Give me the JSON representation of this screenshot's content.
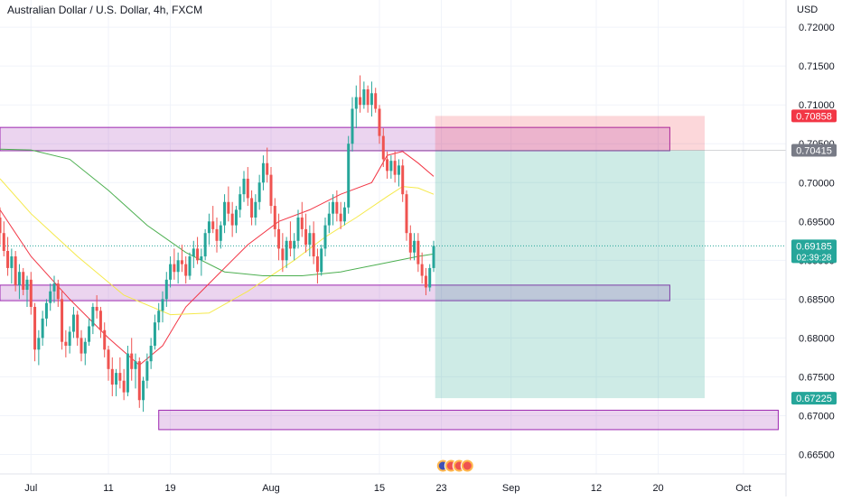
{
  "header": {
    "title": "Australian Dollar / U.S. Dollar, 4h, FXCM",
    "currency": "USD"
  },
  "chart_data": {
    "type": "candlestick",
    "y_axis": {
      "range": [
        0.6625,
        0.7235
      ],
      "ticks": [
        "0.72000",
        "0.71500",
        "0.71000",
        "0.70500",
        "0.70000",
        "0.69500",
        "0.69000",
        "0.68500",
        "0.68000",
        "0.67500",
        "0.67000",
        "0.66500"
      ],
      "tick_values": [
        0.72,
        0.715,
        0.71,
        0.705,
        0.7,
        0.695,
        0.69,
        0.685,
        0.68,
        0.675,
        0.67,
        0.665
      ]
    },
    "x_axis": {
      "ticks": [
        {
          "label": "Jul",
          "day": 0
        },
        {
          "label": "11",
          "day": 10
        },
        {
          "label": "19",
          "day": 18
        },
        {
          "label": "Aug",
          "day": 31
        },
        {
          "label": "15",
          "day": 45
        },
        {
          "label": "23",
          "day": 53
        },
        {
          "label": "Sep",
          "day": 62
        },
        {
          "label": "12",
          "day": 73
        },
        {
          "label": "20",
          "day": 81
        },
        {
          "label": "Oct",
          "day": 92
        }
      ],
      "visible_day_range": [
        -4,
        97.5
      ]
    },
    "price_labels": [
      {
        "value": "0.70858",
        "price": 0.70858,
        "color": "#f23645"
      },
      {
        "value": "0.70415",
        "price": 0.70415,
        "color": "#787b86"
      },
      {
        "value": "0.69185",
        "price": 0.69185,
        "countdown": "02:39:28",
        "color": "#26a69a"
      },
      {
        "value": "0.67225",
        "price": 0.67225,
        "color": "#26a69a"
      }
    ],
    "current_price": 0.69185,
    "zones": [
      {
        "from_day": -4,
        "to_day": 82.5,
        "price_low": 0.7041,
        "price_high": 0.7071
      },
      {
        "from_day": -4,
        "to_day": 82.5,
        "price_low": 0.6848,
        "price_high": 0.6868
      },
      {
        "from_day": 16.5,
        "to_day": 96.5,
        "price_low": 0.6682,
        "price_high": 0.6707
      }
    ],
    "position": {
      "from_day": 52.2,
      "to_day": 87,
      "entry": 0.70415,
      "stop": 0.70858,
      "target": 0.67225
    },
    "moving_averages": [
      {
        "color": "#f23645",
        "points": [
          [
            -4,
            0.6965
          ],
          [
            0,
            0.6905
          ],
          [
            5,
            0.685
          ],
          [
            10,
            0.68
          ],
          [
            14,
            0.6765
          ],
          [
            17,
            0.679
          ],
          [
            20,
            0.684
          ],
          [
            24,
            0.688
          ],
          [
            28,
            0.692
          ],
          [
            32,
            0.695
          ],
          [
            36,
            0.6965
          ],
          [
            40,
            0.6985
          ],
          [
            44,
            0.7
          ],
          [
            46,
            0.7035
          ],
          [
            48,
            0.704
          ],
          [
            50,
            0.7025
          ],
          [
            52,
            0.7008
          ]
        ]
      },
      {
        "color": "#f5e94a",
        "points": [
          [
            -4,
            0.7005
          ],
          [
            0,
            0.696
          ],
          [
            6,
            0.6905
          ],
          [
            12,
            0.6855
          ],
          [
            18,
            0.683
          ],
          [
            23,
            0.6832
          ],
          [
            28,
            0.686
          ],
          [
            34,
            0.69
          ],
          [
            38,
            0.693
          ],
          [
            42,
            0.6955
          ],
          [
            46,
            0.6982
          ],
          [
            48,
            0.6995
          ],
          [
            50,
            0.6993
          ],
          [
            52,
            0.6985
          ]
        ]
      },
      {
        "color": "#4caf50",
        "points": [
          [
            -4,
            0.7043
          ],
          [
            0,
            0.7042
          ],
          [
            5,
            0.703
          ],
          [
            10,
            0.699
          ],
          [
            15,
            0.6945
          ],
          [
            20,
            0.691
          ],
          [
            25,
            0.6885
          ],
          [
            30,
            0.688
          ],
          [
            35,
            0.688
          ],
          [
            40,
            0.6885
          ],
          [
            45,
            0.6895
          ],
          [
            50,
            0.6905
          ],
          [
            52,
            0.6908
          ]
        ]
      }
    ],
    "candles": [
      [
        -4,
        0.6955,
        0.6968,
        0.692,
        0.6935
      ],
      [
        -3.5,
        0.6935,
        0.695,
        0.6905,
        0.6912
      ],
      [
        -3,
        0.6912,
        0.693,
        0.688,
        0.689
      ],
      [
        -2.5,
        0.689,
        0.6915,
        0.687,
        0.6905
      ],
      [
        -2,
        0.6905,
        0.6912,
        0.686,
        0.6868
      ],
      [
        -1.5,
        0.6868,
        0.6895,
        0.685,
        0.6885
      ],
      [
        -1,
        0.6885,
        0.689,
        0.6855,
        0.6862
      ],
      [
        -0.5,
        0.6862,
        0.688,
        0.684,
        0.6875
      ],
      [
        0,
        0.6875,
        0.6885,
        0.683,
        0.684
      ],
      [
        0.5,
        0.684,
        0.6845,
        0.677,
        0.6785
      ],
      [
        1,
        0.6785,
        0.681,
        0.6765,
        0.68
      ],
      [
        1.5,
        0.68,
        0.6835,
        0.679,
        0.6825
      ],
      [
        2,
        0.6825,
        0.685,
        0.6815,
        0.6845
      ],
      [
        2.5,
        0.6845,
        0.687,
        0.6835,
        0.686
      ],
      [
        3,
        0.686,
        0.688,
        0.6845,
        0.687
      ],
      [
        3.5,
        0.687,
        0.6875,
        0.684,
        0.685
      ],
      [
        4,
        0.685,
        0.686,
        0.6785,
        0.6795
      ],
      [
        4.5,
        0.6795,
        0.681,
        0.6775,
        0.679
      ],
      [
        5,
        0.679,
        0.6815,
        0.678,
        0.6808
      ],
      [
        5.5,
        0.6808,
        0.684,
        0.68,
        0.683
      ],
      [
        6,
        0.683,
        0.6835,
        0.679,
        0.68
      ],
      [
        6.5,
        0.68,
        0.681,
        0.677,
        0.678
      ],
      [
        7,
        0.678,
        0.68,
        0.6765,
        0.6795
      ],
      [
        7.5,
        0.6795,
        0.6825,
        0.679,
        0.6815
      ],
      [
        8,
        0.6815,
        0.6845,
        0.6805,
        0.684
      ],
      [
        8.5,
        0.684,
        0.6855,
        0.6825,
        0.6835
      ],
      [
        9,
        0.6835,
        0.684,
        0.68,
        0.681
      ],
      [
        9.5,
        0.681,
        0.682,
        0.6775,
        0.6785
      ],
      [
        10,
        0.6785,
        0.679,
        0.6745,
        0.676
      ],
      [
        10.5,
        0.676,
        0.6775,
        0.6725,
        0.674
      ],
      [
        11,
        0.674,
        0.676,
        0.6725,
        0.6755
      ],
      [
        11.5,
        0.6755,
        0.6775,
        0.6735,
        0.6745
      ],
      [
        12,
        0.6745,
        0.676,
        0.672,
        0.673
      ],
      [
        12.5,
        0.673,
        0.679,
        0.6725,
        0.678
      ],
      [
        13,
        0.678,
        0.68,
        0.6745,
        0.676
      ],
      [
        13.5,
        0.676,
        0.678,
        0.6735,
        0.677
      ],
      [
        14,
        0.677,
        0.6775,
        0.671,
        0.672
      ],
      [
        14.5,
        0.672,
        0.675,
        0.6705,
        0.6745
      ],
      [
        15,
        0.6745,
        0.678,
        0.6735,
        0.677
      ],
      [
        15.5,
        0.677,
        0.68,
        0.676,
        0.679
      ],
      [
        16,
        0.679,
        0.683,
        0.6785,
        0.682
      ],
      [
        16.5,
        0.682,
        0.6845,
        0.681,
        0.6835
      ],
      [
        17,
        0.6835,
        0.686,
        0.682,
        0.685
      ],
      [
        17.5,
        0.685,
        0.6885,
        0.684,
        0.6875
      ],
      [
        18,
        0.6875,
        0.6905,
        0.6865,
        0.6895
      ],
      [
        18.5,
        0.6895,
        0.6915,
        0.6875,
        0.6885
      ],
      [
        19,
        0.6885,
        0.691,
        0.687,
        0.69
      ],
      [
        19.5,
        0.69,
        0.692,
        0.6885,
        0.6895
      ],
      [
        20,
        0.6895,
        0.6905,
        0.687,
        0.688
      ],
      [
        20.5,
        0.688,
        0.691,
        0.6875,
        0.6905
      ],
      [
        21,
        0.6905,
        0.6925,
        0.689,
        0.6915
      ],
      [
        21.5,
        0.6915,
        0.693,
        0.6895,
        0.69
      ],
      [
        22,
        0.69,
        0.6915,
        0.688,
        0.6905
      ],
      [
        22.5,
        0.6905,
        0.694,
        0.69,
        0.6935
      ],
      [
        23,
        0.6935,
        0.696,
        0.692,
        0.695
      ],
      [
        23.5,
        0.695,
        0.697,
        0.6935,
        0.694
      ],
      [
        24,
        0.694,
        0.6955,
        0.691,
        0.6925
      ],
      [
        24.5,
        0.6925,
        0.695,
        0.6915,
        0.6945
      ],
      [
        25,
        0.6945,
        0.6985,
        0.6935,
        0.6975
      ],
      [
        25.5,
        0.6975,
        0.6995,
        0.695,
        0.696
      ],
      [
        26,
        0.696,
        0.6975,
        0.693,
        0.6945
      ],
      [
        26.5,
        0.6945,
        0.697,
        0.6935,
        0.6965
      ],
      [
        27,
        0.6965,
        0.6995,
        0.6955,
        0.6985
      ],
      [
        27.5,
        0.6985,
        0.7015,
        0.6975,
        0.7005
      ],
      [
        28,
        0.7005,
        0.702,
        0.697,
        0.698
      ],
      [
        28.5,
        0.698,
        0.699,
        0.6945,
        0.6955
      ],
      [
        29,
        0.6955,
        0.6985,
        0.6945,
        0.6975
      ],
      [
        29.5,
        0.6975,
        0.701,
        0.6965,
        0.7
      ],
      [
        30,
        0.7,
        0.7035,
        0.699,
        0.7025
      ],
      [
        30.5,
        0.7025,
        0.7045,
        0.7,
        0.701
      ],
      [
        31,
        0.701,
        0.702,
        0.696,
        0.697
      ],
      [
        31.5,
        0.697,
        0.698,
        0.693,
        0.694
      ],
      [
        32,
        0.694,
        0.696,
        0.69,
        0.6915
      ],
      [
        32.5,
        0.6915,
        0.6935,
        0.6885,
        0.69
      ],
      [
        33,
        0.69,
        0.693,
        0.689,
        0.6925
      ],
      [
        33.5,
        0.6925,
        0.695,
        0.6905,
        0.6915
      ],
      [
        34,
        0.6915,
        0.6935,
        0.69,
        0.6925
      ],
      [
        34.5,
        0.6925,
        0.6965,
        0.6915,
        0.6955
      ],
      [
        35,
        0.6955,
        0.6975,
        0.693,
        0.694
      ],
      [
        35.5,
        0.694,
        0.696,
        0.691,
        0.692
      ],
      [
        36,
        0.692,
        0.6945,
        0.6905,
        0.6935
      ],
      [
        36.5,
        0.6935,
        0.695,
        0.6895,
        0.6905
      ],
      [
        37,
        0.6905,
        0.6915,
        0.687,
        0.6885
      ],
      [
        37.5,
        0.6885,
        0.692,
        0.688,
        0.6915
      ],
      [
        38,
        0.6915,
        0.6955,
        0.6905,
        0.6945
      ],
      [
        38.5,
        0.6945,
        0.6975,
        0.6935,
        0.696
      ],
      [
        39,
        0.696,
        0.6985,
        0.6945,
        0.6975
      ],
      [
        39.5,
        0.6975,
        0.699,
        0.695,
        0.696
      ],
      [
        40,
        0.696,
        0.6975,
        0.694,
        0.695
      ],
      [
        40.5,
        0.695,
        0.6975,
        0.6945,
        0.6968
      ],
      [
        41,
        0.6968,
        0.706,
        0.696,
        0.705
      ],
      [
        41.5,
        0.705,
        0.711,
        0.704,
        0.7095
      ],
      [
        42,
        0.7095,
        0.7125,
        0.707,
        0.711
      ],
      [
        42.5,
        0.711,
        0.7138,
        0.709,
        0.71
      ],
      [
        43,
        0.71,
        0.713,
        0.7095,
        0.712
      ],
      [
        43.5,
        0.712,
        0.7125,
        0.709,
        0.71
      ],
      [
        44,
        0.71,
        0.713,
        0.7085,
        0.7115
      ],
      [
        44.5,
        0.7115,
        0.7122,
        0.709,
        0.7095
      ],
      [
        45,
        0.7095,
        0.71,
        0.705,
        0.706
      ],
      [
        45.5,
        0.706,
        0.707,
        0.702,
        0.703
      ],
      [
        46,
        0.703,
        0.704,
        0.7005,
        0.7015
      ],
      [
        46.5,
        0.7015,
        0.7035,
        0.7005,
        0.7028
      ],
      [
        47,
        0.7028,
        0.704,
        0.7,
        0.701
      ],
      [
        47.5,
        0.701,
        0.703,
        0.6995,
        0.7022
      ],
      [
        48,
        0.7022,
        0.703,
        0.6975,
        0.6985
      ],
      [
        48.5,
        0.6985,
        0.699,
        0.6925,
        0.6935
      ],
      [
        49,
        0.6935,
        0.6945,
        0.69,
        0.691
      ],
      [
        49.5,
        0.691,
        0.6935,
        0.69,
        0.6925
      ],
      [
        50,
        0.6925,
        0.6935,
        0.6885,
        0.6895
      ],
      [
        50.5,
        0.6895,
        0.691,
        0.687,
        0.688
      ],
      [
        51,
        0.688,
        0.689,
        0.6855,
        0.6865
      ],
      [
        51.5,
        0.6865,
        0.6895,
        0.686,
        0.689
      ],
      [
        52,
        0.689,
        0.6925,
        0.6885,
        0.69185
      ]
    ],
    "events": {
      "x_day": 53.2,
      "count": 4
    }
  }
}
